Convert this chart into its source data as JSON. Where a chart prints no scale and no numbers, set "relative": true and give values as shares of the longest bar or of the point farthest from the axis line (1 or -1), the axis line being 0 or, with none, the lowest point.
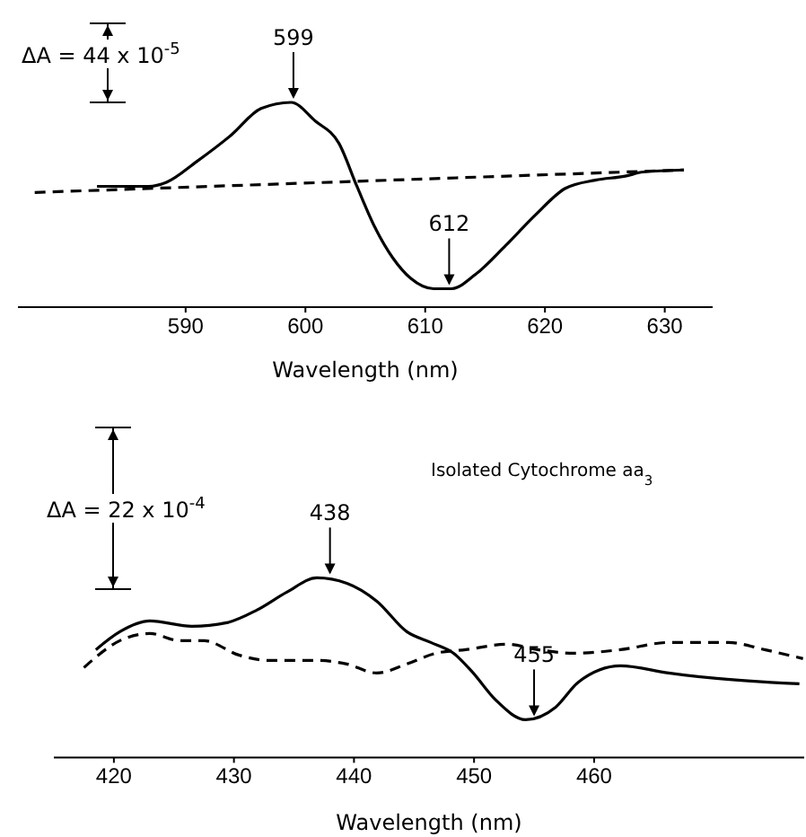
{
  "chart_data": [
    {
      "type": "line",
      "relative": true,
      "xlabel": "Wavelength (nm)",
      "xlim": [
        576,
        634
      ],
      "xticks": [
        590,
        600,
        610,
        620,
        630
      ],
      "series": [
        {
          "color": "#000000",
          "line_style": "solid",
          "x": [
            582.6,
            586.9,
            588.4,
            590.9,
            593.8,
            596.3,
            598.8,
            600.8,
            602.8,
            604.3,
            605.8,
            607.3,
            608.8,
            610.7,
            612.2,
            614.2,
            616.7,
            619.2,
            621.7,
            624.2,
            626.7,
            628.2,
            631.6
          ],
          "values": [
            0.59,
            0.59,
            0.61,
            0.71,
            0.84,
            0.97,
            1.0,
            0.91,
            0.8,
            0.59,
            0.39,
            0.24,
            0.14,
            0.09,
            0.09,
            0.16,
            0.3,
            0.45,
            0.58,
            0.62,
            0.64,
            0.66,
            0.67
          ]
        },
        {
          "color": "#000000",
          "line_style": "dashed",
          "x": [
            577.4,
            631.6
          ],
          "values": [
            0.56,
            0.67
          ]
        }
      ],
      "annotations": [
        "ΔA = 44 x 10$^{-5}$",
        {
          "text": "599",
          "x": 599,
          "y": 1.0
        },
        {
          "text": "612",
          "x": 612,
          "y": 0.09
        }
      ]
    },
    {
      "type": "line",
      "relative": true,
      "xlabel": "Wavelength (nm)",
      "xlim": [
        415,
        477.5
      ],
      "xticks": [
        420,
        430,
        440,
        450,
        460
      ],
      "series": [
        {
          "color": "#000000",
          "line_style": "solid",
          "x": [
            418.5,
            420.5,
            423.0,
            426.5,
            429.4,
            431.9,
            434.4,
            436.9,
            439.4,
            441.9,
            444.4,
            446.4,
            448.3,
            449.8,
            451.8,
            454.3,
            456.8,
            458.7,
            462.2,
            466.2,
            470.2,
            474.2,
            477.1
          ],
          "values": [
            0.6,
            0.7,
            0.76,
            0.73,
            0.75,
            0.82,
            0.92,
            1.0,
            0.97,
            0.87,
            0.7,
            0.64,
            0.58,
            0.48,
            0.32,
            0.21,
            0.28,
            0.42,
            0.51,
            0.47,
            0.44,
            0.42,
            0.41
          ]
        },
        {
          "color": "#000000",
          "line_style": "dashed",
          "x": [
            417.5,
            420.5,
            423.0,
            425.5,
            427.5,
            430.4,
            432.9,
            436.9,
            439.4,
            441.9,
            444.4,
            446.8,
            449.3,
            452.8,
            455.3,
            458.3,
            462.2,
            466.2,
            471.2,
            474.2,
            477.4
          ],
          "values": [
            0.5,
            0.65,
            0.69,
            0.65,
            0.65,
            0.57,
            0.54,
            0.54,
            0.52,
            0.47,
            0.52,
            0.58,
            0.6,
            0.63,
            0.6,
            0.58,
            0.6,
            0.64,
            0.64,
            0.6,
            0.55
          ]
        }
      ],
      "annotations": [
        "ΔA = 22 x 10$^{-4}$",
        "Isolated Cytochrome aa$_{3}$",
        {
          "text": "438",
          "x": 438,
          "y": 1.0
        },
        {
          "text": "455",
          "x": 455,
          "y": 0.21
        }
      ]
    }
  ]
}
